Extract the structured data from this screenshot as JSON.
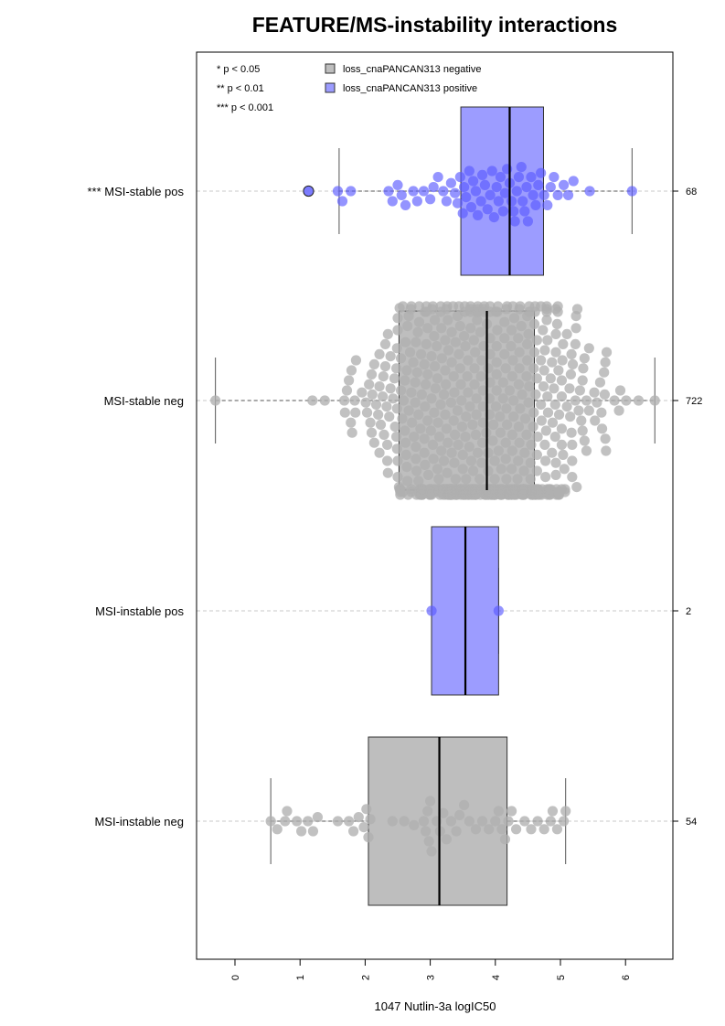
{
  "chart_data": {
    "type": "boxplot-beeswarm",
    "title": "FEATURE/MS-instability interactions",
    "xlabel": "1047 Nutlin-3a logIC50",
    "xlim": [
      -0.6,
      6.7
    ],
    "x_ticks": [
      "0",
      "1",
      "2",
      "3",
      "4",
      "5",
      "6"
    ],
    "grid": false,
    "legend_position": "top",
    "significance_legend": [
      "* p < 0.05",
      "** p < 0.01",
      "*** p < 0.001"
    ],
    "series": [
      {
        "name": "loss_cnaPANCAN313 negative",
        "color": "#bebebe"
      },
      {
        "name": "loss_cnaPANCAN313 positive",
        "color": "#9c9cff"
      }
    ],
    "groups": [
      {
        "label": "*** MSI-stable pos",
        "count_label": "68",
        "status": "positive",
        "box": {
          "q1": 3.47,
          "median": 4.22,
          "q3": 4.74,
          "whisker_low": 1.6,
          "whisker_high": 6.1
        },
        "points": [
          1.13,
          1.58,
          1.65,
          1.78,
          2.36,
          2.42,
          2.5,
          2.56,
          2.62,
          2.74,
          2.8,
          2.9,
          3.0,
          3.05,
          3.12,
          3.2,
          3.25,
          3.32,
          3.38,
          3.42,
          3.46,
          3.5,
          3.52,
          3.55,
          3.6,
          3.63,
          3.66,
          3.7,
          3.73,
          3.78,
          3.8,
          3.84,
          3.88,
          3.92,
          3.95,
          3.98,
          4.02,
          4.05,
          4.08,
          4.12,
          4.15,
          4.18,
          4.22,
          4.25,
          4.28,
          4.3,
          4.33,
          4.36,
          4.4,
          4.42,
          4.45,
          4.48,
          4.5,
          4.55,
          4.58,
          4.62,
          4.66,
          4.7,
          4.75,
          4.8,
          4.85,
          4.9,
          4.96,
          5.05,
          5.12,
          5.2,
          5.45,
          6.1
        ]
      },
      {
        "label": "MSI-stable neg",
        "count_label": "722",
        "status": "negative",
        "box": {
          "q1": 2.52,
          "median": 3.87,
          "q3": 4.6,
          "whisker_low": -0.3,
          "whisker_high": 6.45
        },
        "points_total": 722,
        "points_min": -0.3,
        "points_max": 6.45
      },
      {
        "label": "MSI-instable pos",
        "count_label": "2",
        "status": "positive",
        "box": {
          "q1": 3.02,
          "median": 3.54,
          "q3": 4.05,
          "whisker_low": 3.02,
          "whisker_high": 4.05
        },
        "points": [
          3.02,
          4.05
        ]
      },
      {
        "label": "MSI-instable neg",
        "count_label": "54",
        "status": "negative",
        "box": {
          "q1": 2.05,
          "median": 3.14,
          "q3": 4.18,
          "whisker_low": 0.55,
          "whisker_high": 5.08
        },
        "points": [
          0.55,
          0.65,
          0.77,
          0.8,
          0.95,
          1.02,
          1.12,
          1.2,
          1.27,
          1.58,
          1.75,
          1.82,
          1.9,
          1.98,
          2.02,
          2.05,
          2.08,
          2.42,
          2.6,
          2.75,
          2.9,
          2.93,
          2.96,
          2.98,
          3.0,
          3.02,
          3.1,
          3.15,
          3.2,
          3.25,
          3.32,
          3.4,
          3.45,
          3.52,
          3.6,
          3.7,
          3.8,
          3.9,
          4.0,
          4.05,
          4.1,
          4.15,
          4.2,
          4.25,
          4.32,
          4.45,
          4.55,
          4.65,
          4.75,
          4.85,
          4.88,
          4.95,
          5.05,
          5.08
        ]
      }
    ]
  }
}
